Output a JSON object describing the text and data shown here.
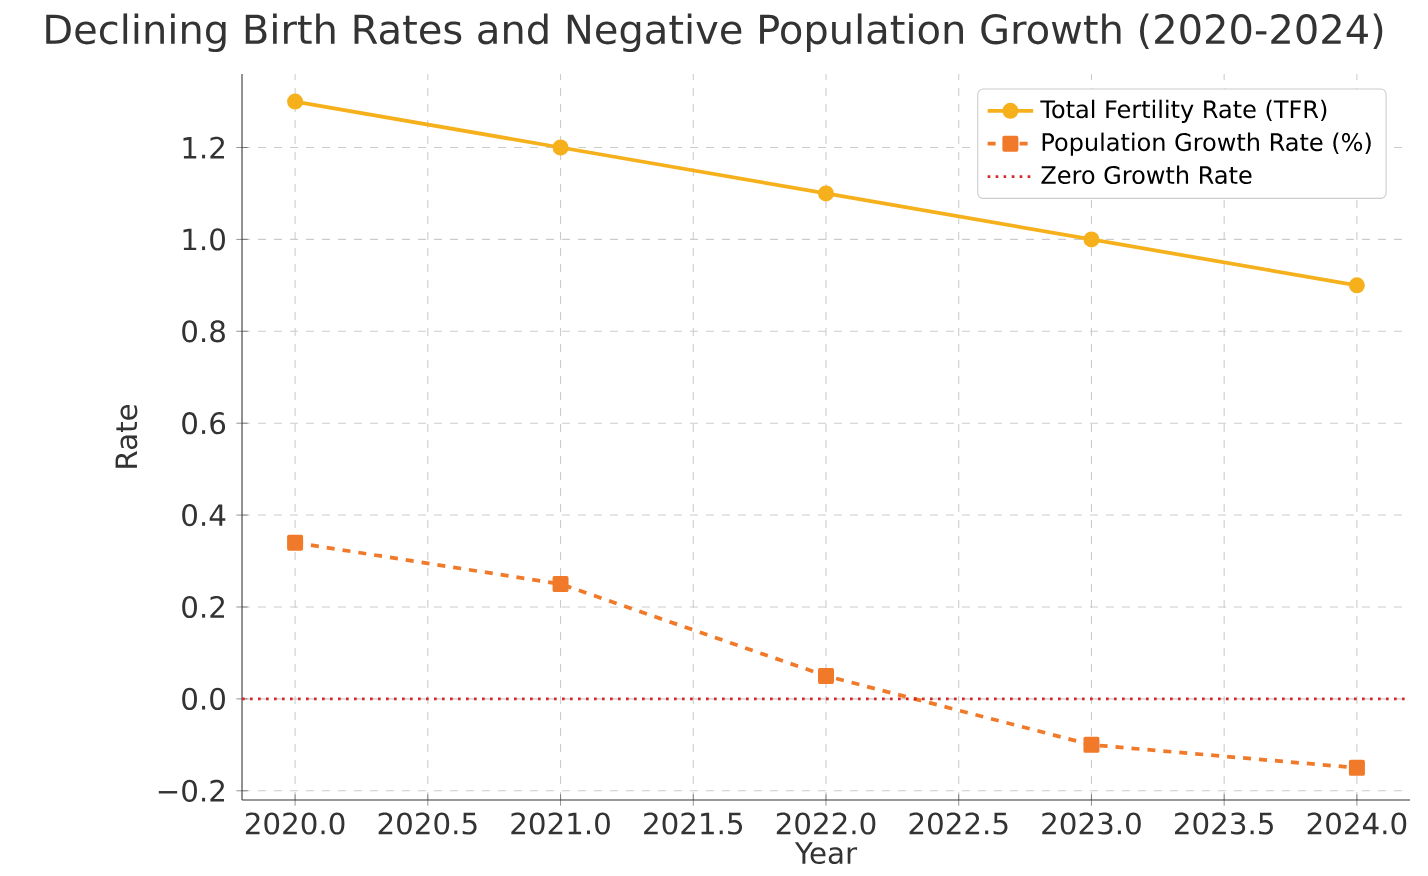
{
  "chart_data": {
    "type": "line",
    "title": "Declining Birth Rates and Negative Population Growth (2020-2024)",
    "xlabel": "Year",
    "ylabel": "Rate",
    "x": [
      2020,
      2021,
      2022,
      2023,
      2024
    ],
    "series": [
      {
        "name": "Total Fertility Rate (TFR)",
        "color": "#f5b01c",
        "values": [
          1.3,
          1.2,
          1.1,
          1.0,
          0.9
        ],
        "marker": "circle",
        "line_style": "solid"
      },
      {
        "name": "Population Growth Rate (%)",
        "color": "#f07a2a",
        "values": [
          0.34,
          0.25,
          0.05,
          -0.1,
          -0.15
        ],
        "marker": "square",
        "line_style": "dashed"
      }
    ],
    "ref_lines": [
      {
        "axis": "y",
        "value": 0,
        "label": "Zero Growth Rate",
        "color": "#d62728",
        "line_style": "dotted"
      }
    ],
    "xlim": [
      2019.8,
      2024.2
    ],
    "ylim": [
      -0.22,
      1.36
    ],
    "xticks": [
      {
        "value": 2020,
        "label": "2020.0"
      },
      {
        "value": 2020.5,
        "label": "2020.5"
      },
      {
        "value": 2021,
        "label": "2021.0"
      },
      {
        "value": 2021.5,
        "label": "2021.5"
      },
      {
        "value": 2022,
        "label": "2022.0"
      },
      {
        "value": 2022.5,
        "label": "2022.5"
      },
      {
        "value": 2023,
        "label": "2023.0"
      },
      {
        "value": 2023.5,
        "label": "2023.5"
      },
      {
        "value": 2024,
        "label": "2024.0"
      }
    ],
    "yticks": [
      {
        "value": -0.2,
        "label": "−0.2"
      },
      {
        "value": 0,
        "label": "0.0"
      },
      {
        "value": 0.2,
        "label": "0.2"
      },
      {
        "value": 0.4,
        "label": "0.4"
      },
      {
        "value": 0.6,
        "label": "0.6"
      },
      {
        "value": 0.8,
        "label": "0.8"
      },
      {
        "value": 1.0,
        "label": "1.0"
      },
      {
        "value": 1.2,
        "label": "1.2"
      }
    ],
    "grid": true,
    "legend": "top right"
  }
}
